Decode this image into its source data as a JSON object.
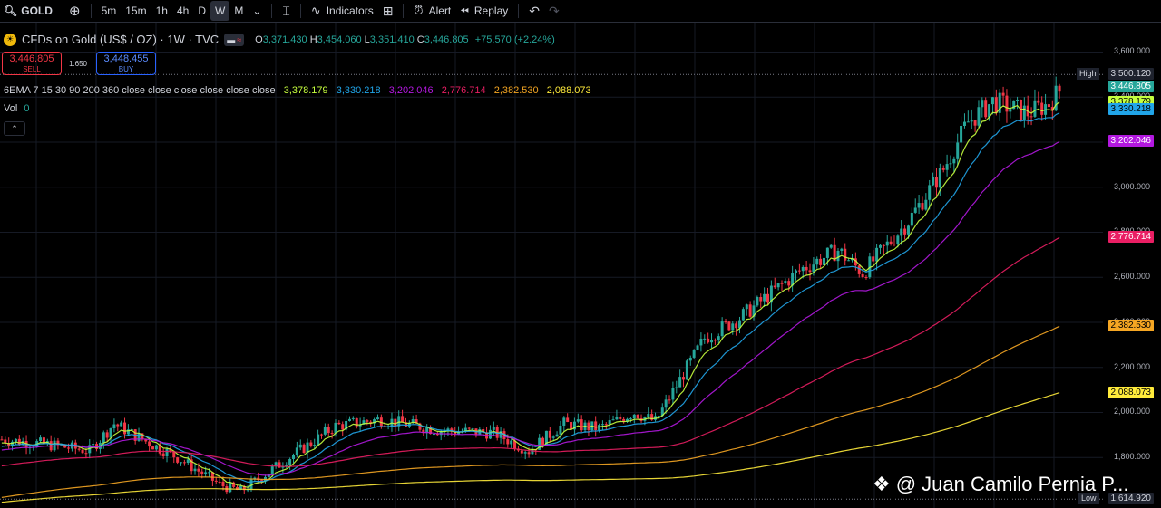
{
  "toolbar": {
    "symbol": "GOLD",
    "intervals": [
      "5m",
      "15m",
      "1h",
      "4h",
      "D",
      "W",
      "M"
    ],
    "active_interval": "W",
    "indicators_label": "Indicators",
    "alert_label": "Alert",
    "replay_label": "Replay"
  },
  "legend": {
    "title": "CFDs on Gold (US$ / OZ) · 1W · TVC",
    "open_label": "O",
    "open": "3,371.430",
    "high_label": "H",
    "high": "3,454.060",
    "low_label": "L",
    "low": "3,351.410",
    "close_label": "C",
    "close": "3,446.805",
    "change": "+75.570 (+2.24%)"
  },
  "trade": {
    "sell_price": "3,446.805",
    "sell_label": "SELL",
    "spread": "1.650",
    "buy_price": "3,448.455",
    "buy_label": "BUY"
  },
  "indicator": {
    "name": "6EMA 7 15 30 90 200 360 close close close close close close",
    "values": [
      "3,378.179",
      "3,330.218",
      "3,202.046",
      "2,776.714",
      "2,382.530",
      "2,088.073"
    ],
    "colors": [
      "#c6ff3e",
      "#21a5e9",
      "#b318e0",
      "#e91e63",
      "#f5a623",
      "#ffeb3b"
    ]
  },
  "volume": {
    "label": "Vol",
    "value": "0"
  },
  "price_axis": {
    "ticks": [
      "3,600.000",
      "3,400.000",
      "3,200.000",
      "3,000.000",
      "2,800.000",
      "2,600.000",
      "2,400.000",
      "2,200.000",
      "2,000.000",
      "1,800.000"
    ],
    "high_label": "High",
    "high_value": "3,500.120",
    "low_label": "Low",
    "low_value": "1,614.920",
    "last_price": "3,446.805",
    "ema_labels": [
      "3,378.179",
      "3,330.218",
      "3,202.046",
      "2,776.714",
      "2,382.530",
      "2,088.073"
    ]
  },
  "chart_data": {
    "type": "candlestick",
    "ylim": [
      1600,
      3650
    ],
    "ema_last": [
      3378.179,
      3330.218,
      3202.046,
      2776.714,
      2382.53,
      2088.073
    ],
    "ema_first": [
      1860,
      1845,
      1830,
      1760,
      1620,
      1600
    ],
    "shape_points": [
      [
        0,
        1880
      ],
      [
        12,
        1860
      ],
      [
        25,
        1830
      ],
      [
        32,
        1950
      ],
      [
        40,
        1880
      ],
      [
        50,
        1800
      ],
      [
        62,
        1680
      ],
      [
        68,
        1650
      ],
      [
        80,
        1780
      ],
      [
        95,
        1940
      ],
      [
        108,
        1970
      ],
      [
        125,
        1920
      ],
      [
        140,
        1910
      ],
      [
        150,
        1830
      ],
      [
        160,
        1950
      ],
      [
        170,
        1930
      ],
      [
        180,
        2000
      ],
      [
        186,
        1960
      ],
      [
        200,
        2330
      ],
      [
        210,
        2420
      ],
      [
        228,
        2640
      ],
      [
        238,
        2720
      ],
      [
        245,
        2620
      ],
      [
        258,
        2850
      ],
      [
        268,
        3080
      ],
      [
        275,
        3290
      ],
      [
        282,
        3380
      ],
      [
        292,
        3330
      ],
      [
        298,
        3370
      ],
      [
        302,
        3447
      ]
    ],
    "n_candles": 302,
    "colors": {
      "up": "#26a69a",
      "down": "#f23645"
    }
  },
  "watermark": "@ Juan Camilo Pernia P..."
}
